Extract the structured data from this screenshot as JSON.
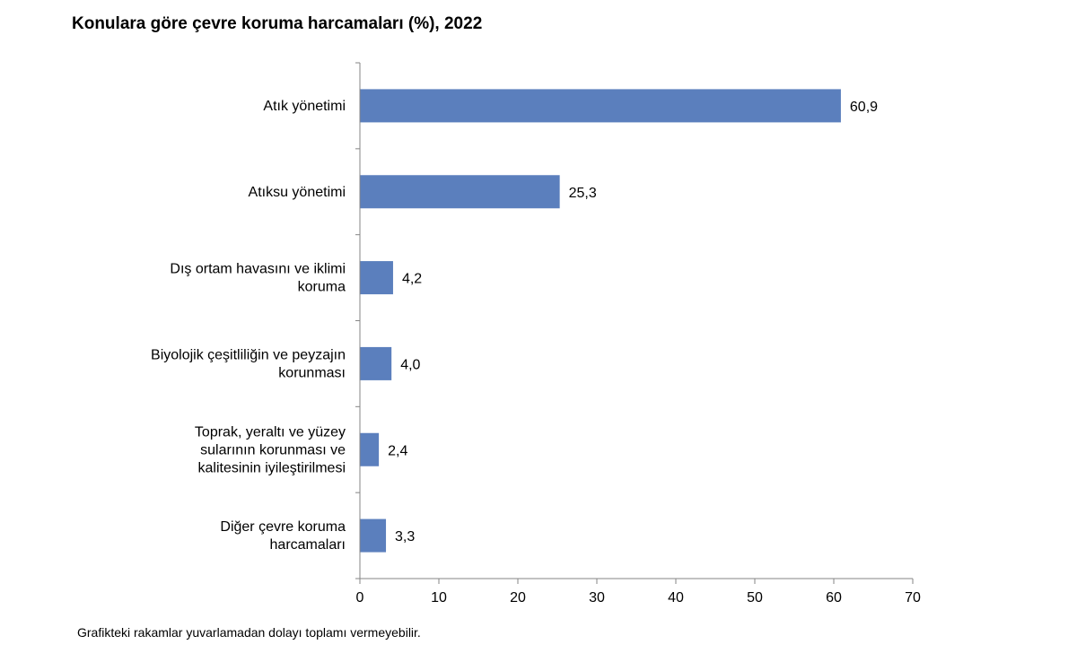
{
  "chart_data": {
    "type": "bar",
    "orientation": "horizontal",
    "title": "Konulara göre çevre koruma harcamaları (%), 2022",
    "categories": [
      [
        "Atık yönetimi"
      ],
      [
        "Atıksu yönetimi"
      ],
      [
        "Dış ortam havasını ve iklimi",
        "koruma"
      ],
      [
        "Biyolojik çeşitliliğin ve peyzajın",
        "korunması"
      ],
      [
        "Toprak, yeraltı ve yüzey",
        "sularının korunması ve",
        "kalitesinin iyileştirilmesi"
      ],
      [
        "Diğer çevre koruma",
        "harcamaları"
      ]
    ],
    "values": [
      60.9,
      25.3,
      4.2,
      4.0,
      2.4,
      3.3
    ],
    "data_labels": [
      "60,9",
      "25,3",
      "4,2",
      "4,0",
      "2,4",
      "3,3"
    ],
    "xlim": [
      0,
      70
    ],
    "xticks": [
      0,
      10,
      20,
      30,
      40,
      50,
      60,
      70
    ],
    "grid": false,
    "bar_color": "#5b7fbd",
    "axis_color": "#868686"
  },
  "footnote": "Grafikteki rakamlar yuvarlamadan dolayı toplamı vermeyebilir."
}
